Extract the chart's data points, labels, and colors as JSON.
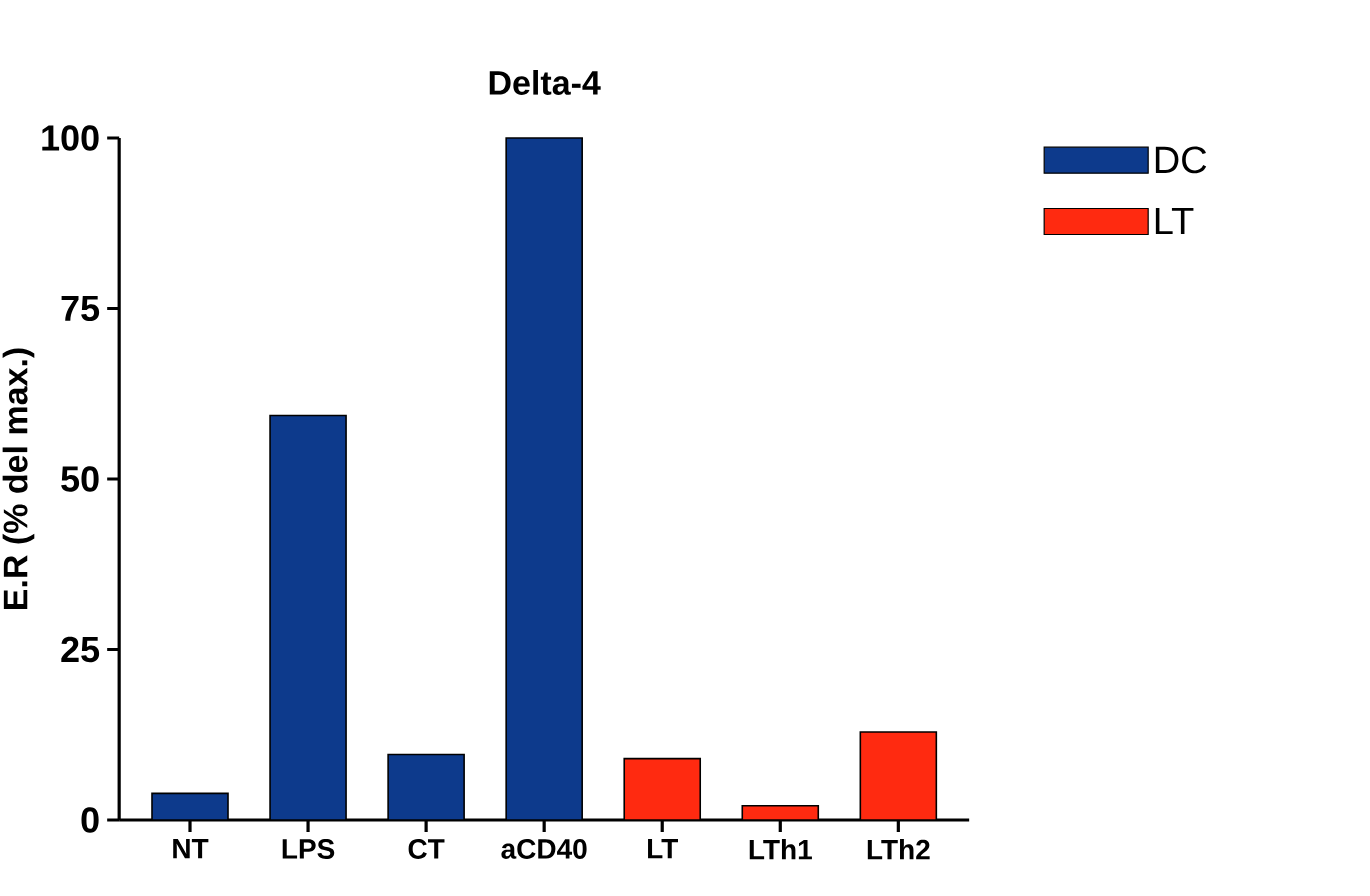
{
  "chart_data": {
    "type": "bar",
    "title": "Delta-4",
    "ylabel": "E.R (% del max.)",
    "categories": [
      "NT",
      "LPS",
      "CT",
      "aCD40",
      "LT",
      "LTh1",
      "LTh2"
    ],
    "series": [
      {
        "name": "DC",
        "color": "#0d3a8c",
        "values": [
          3.9,
          59.3,
          9.6,
          100,
          null,
          null,
          null
        ]
      },
      {
        "name": "LT",
        "color": "#ff2a10",
        "values": [
          null,
          null,
          null,
          null,
          9.0,
          2.1,
          12.9
        ]
      }
    ],
    "ylim": [
      0,
      100
    ],
    "yticks": [
      0,
      25,
      50,
      75,
      100
    ],
    "grid": false,
    "legend": "top right"
  }
}
